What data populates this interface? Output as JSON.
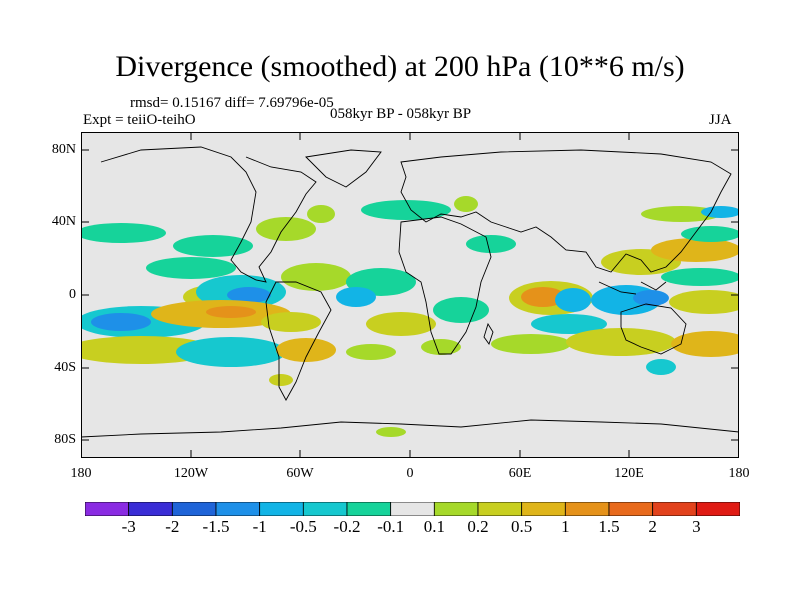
{
  "title": "Divergence (smoothed) at 200 hPa (10**6 m/s)",
  "stats_line": "rmsd= 0.15167 diff= 7.69796e-05",
  "expt_line": "Expt = teiiO-teihO",
  "period_line": "058kyr BP - 058kyr BP",
  "season": "JJA",
  "y_axis": {
    "labels": [
      "80N",
      "40N",
      "0",
      "40S",
      "80S"
    ]
  },
  "x_axis": {
    "labels": [
      "180",
      "120W",
      "60W",
      "0",
      "60E",
      "120E",
      "180"
    ]
  },
  "colorbar": {
    "labels": [
      "-3",
      "-2",
      "-1.5",
      "-1",
      "-0.5",
      "-0.2",
      "-0.1",
      "0.1",
      "0.2",
      "0.5",
      "1",
      "1.5",
      "2",
      "3"
    ],
    "colors": [
      "#8a2be2",
      "#3a2dd6",
      "#1f64d8",
      "#1e90e8",
      "#12b4e6",
      "#16c8cf",
      "#16d39a",
      "#e6e6e6",
      "#a6d92a",
      "#c8cf20",
      "#dfb51a",
      "#e5921a",
      "#e86a1c",
      "#e2421c",
      "#e01b14"
    ]
  },
  "map": {
    "background_color": "#e6e6e6",
    "coastline_color": "#000000"
  }
}
